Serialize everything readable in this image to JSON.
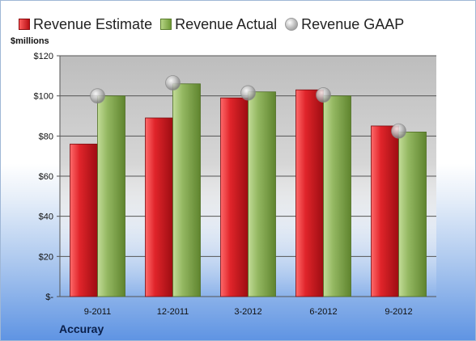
{
  "chart_data": {
    "type": "bar",
    "ylabel": "$millions",
    "company": "Accuray",
    "categories": [
      "9-2011",
      "12-2011",
      "3-2012",
      "6-2012",
      "9-2012"
    ],
    "ylim": [
      0,
      120
    ],
    "yticks": [
      0,
      20,
      40,
      60,
      80,
      100,
      120
    ],
    "ytick_labels": [
      "$-",
      "$20",
      "$40",
      "$60",
      "$80",
      "$100",
      "$120"
    ],
    "grid": true,
    "legend": "top",
    "series": [
      {
        "name": "Revenue Estimate",
        "type": "bar",
        "color": "#c8161c",
        "values": [
          76,
          89,
          99,
          103,
          85
        ]
      },
      {
        "name": "Revenue Actual",
        "type": "bar",
        "color": "#8fb35a",
        "values": [
          100,
          106,
          102,
          100,
          82
        ]
      },
      {
        "name": "Revenue GAAP",
        "type": "marker",
        "color": "#b0b0b0",
        "values": [
          100,
          106.5,
          101.5,
          100.5,
          82.5
        ]
      }
    ]
  }
}
